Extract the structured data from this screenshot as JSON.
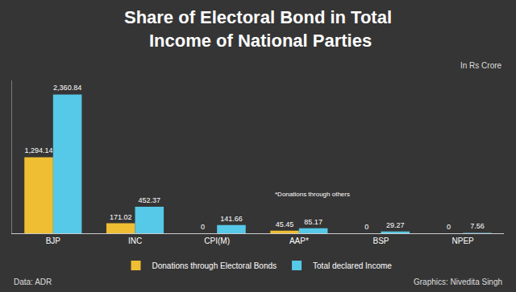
{
  "chart_data": {
    "type": "bar",
    "title": "Share of Electoral Bond in Total Income of National Parties",
    "ylabel": "In Rs Crore",
    "categories": [
      "BJP",
      "INC",
      "CPI(M)",
      "AAP*",
      "BSP",
      "NPEP"
    ],
    "series": [
      {
        "name": "Donations through Electoral Bonds",
        "color": "#f0be32",
        "values": [
          1294.14,
          171.02,
          0,
          45.45,
          0,
          0
        ],
        "value_labels": [
          "1,294.14",
          "171.02",
          "0",
          "45.45",
          "0",
          "0"
        ]
      },
      {
        "name": "Total declared Income",
        "color": "#56c8e8",
        "values": [
          2360.84,
          452.37,
          141.66,
          85.17,
          29.27,
          7.56
        ],
        "value_labels": [
          "2,360.84",
          "452.37",
          "141.66",
          "85.17",
          "29.27",
          "7.56"
        ]
      }
    ],
    "ylim": [
      0,
      2600
    ],
    "grid": false,
    "legend": "bottom",
    "data_labels": true,
    "tick_labels": "x",
    "annotations": [
      {
        "text": "*Donations through others",
        "category": "AAP*"
      }
    ],
    "source": "Data: ADR",
    "credit": "Graphics: Nivedita Singh"
  }
}
